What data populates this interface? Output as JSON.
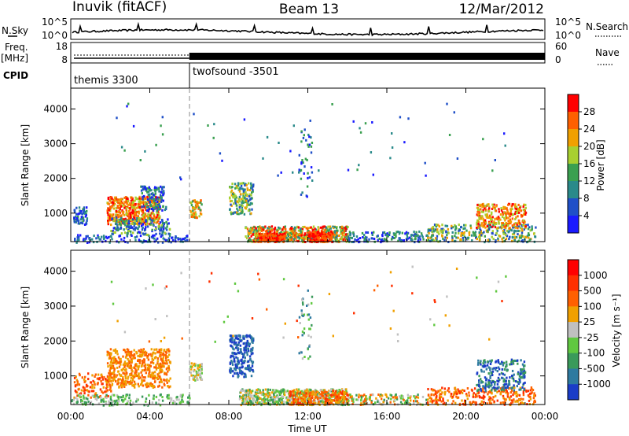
{
  "header": {
    "station": "Inuvik (fitACF)",
    "beam": "Beam 13",
    "date": "12/Mar/2012"
  },
  "chart_data": [
    {
      "type": "line",
      "id": "noise",
      "left_label": "N.Sky",
      "right_label": "N.Search",
      "left_ticks": [
        "10^5",
        "10^0"
      ],
      "right_ticks": [
        "10^5",
        "10^0"
      ]
    },
    {
      "type": "line",
      "id": "freq",
      "left_label_top": "Freq.",
      "left_label_bottom": "[MHz]",
      "right_label": "Nave",
      "left_ticks": [
        "18",
        "8"
      ],
      "right_ticks": [
        "60",
        "0"
      ],
      "cpid_label": "CPID",
      "modes": [
        {
          "name": "themis 3300",
          "start_h": 0,
          "end_h": 6
        },
        {
          "name": "twofsound -3501",
          "start_h": 6,
          "end_h": 24
        }
      ]
    },
    {
      "type": "heatmap",
      "id": "power",
      "ylabel": "Slant Range [km]",
      "yticks": [
        "4000",
        "3000",
        "2000",
        "1000"
      ],
      "ytick_values": [
        4000,
        3000,
        2000,
        1000
      ],
      "ylim": [
        180,
        4600
      ],
      "colorbar_label": "Power [dB]",
      "colorbar_ticks": [
        "28",
        "24",
        "20",
        "16",
        "12",
        "8",
        "4"
      ],
      "colors": [
        "#1a1aff",
        "#1f4fc8",
        "#2a8a8a",
        "#3aa050",
        "#a8d030",
        "#f0a000",
        "#ff6000",
        "#ff0000"
      ]
    },
    {
      "type": "heatmap",
      "id": "velocity",
      "ylabel": "Slant Range [km]",
      "yticks": [
        "4000",
        "3000",
        "2000",
        "1000"
      ],
      "ytick_values": [
        4000,
        3000,
        2000,
        1000
      ],
      "ylim": [
        180,
        4600
      ],
      "colorbar_label": "Velocity [m s⁻¹]",
      "colorbar_ticks": [
        "1000",
        "500",
        "100",
        "25",
        "-25",
        "-100",
        "-500",
        "-1000"
      ],
      "colors": [
        "#1a3cc8",
        "#2e7aa0",
        "#3a9a5a",
        "#60c840",
        "#c0c0c0",
        "#f0a000",
        "#ff6000",
        "#ff3000",
        "#ff0000"
      ]
    }
  ],
  "xaxis": {
    "label": "Time UT",
    "ticks": [
      "00:00",
      "04:00",
      "08:00",
      "12:00",
      "16:00",
      "20:00",
      "00:00"
    ],
    "tick_hours": [
      0,
      4,
      8,
      12,
      16,
      20,
      24
    ]
  }
}
